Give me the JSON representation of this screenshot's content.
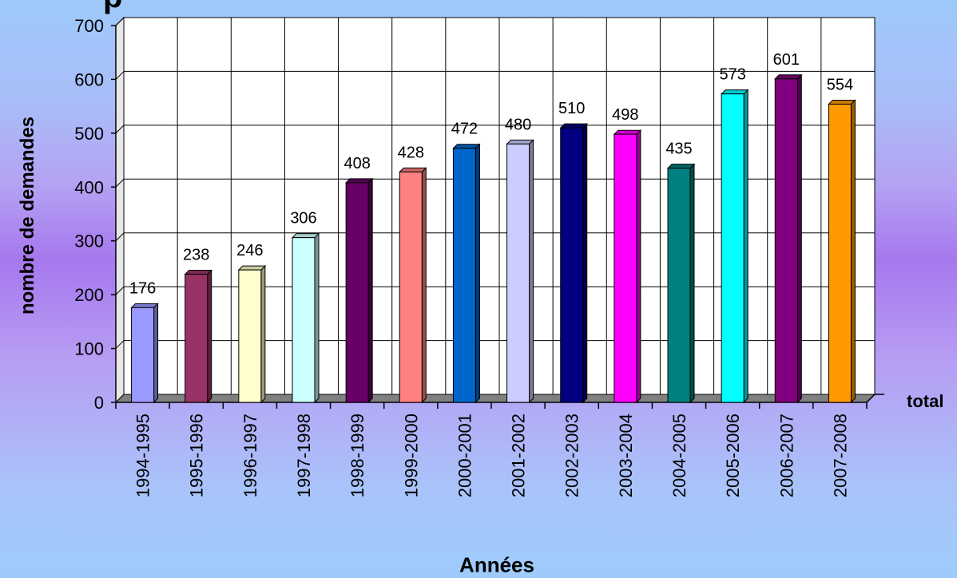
{
  "page": {
    "title_fragment": "p"
  },
  "chart_data": {
    "type": "bar",
    "xlabel": "Années",
    "ylabel": "nombre de demandes",
    "ylim": [
      0,
      700
    ],
    "yticks": [
      0,
      100,
      200,
      300,
      400,
      500,
      600,
      700
    ],
    "grid": true,
    "categories": [
      "1994-1995",
      "1995-1996",
      "1996-1997",
      "1997-1998",
      "1998-1999",
      "1999-2000",
      "2000-2001",
      "2001-2002",
      "2002-2003",
      "2003-2004",
      "2004-2005",
      "2005-2006",
      "2006-2007",
      "2007-2008"
    ],
    "series": [
      {
        "name": "total",
        "values": [
          176,
          238,
          246,
          306,
          408,
          428,
          472,
          480,
          510,
          498,
          435,
          573,
          601,
          554
        ]
      }
    ],
    "bar_colors": [
      "#9999ff",
      "#993366",
      "#ffffcc",
      "#ccffff",
      "#660066",
      "#ff8080",
      "#0066cc",
      "#ccccff",
      "#000080",
      "#ff00ff",
      "#008080",
      "#00ffff",
      "#800080",
      "#ff9900"
    ]
  }
}
